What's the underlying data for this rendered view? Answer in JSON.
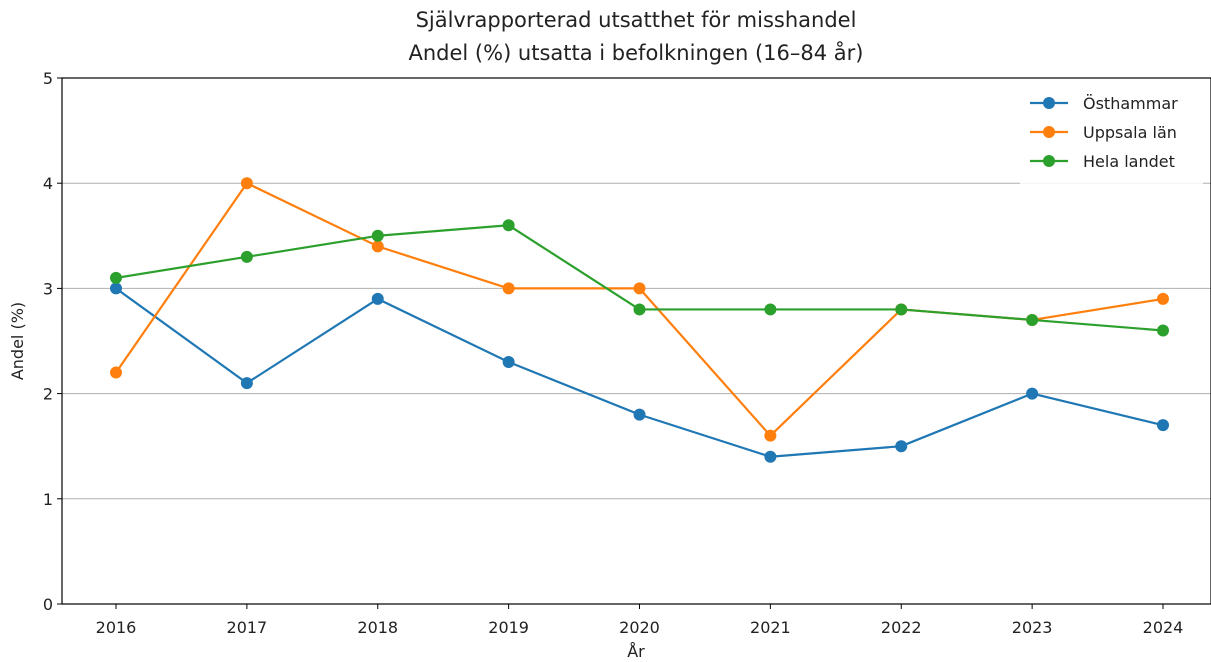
{
  "chart_data": {
    "type": "line",
    "title": "Självrapporterad utsatthet för misshandel",
    "subtitle": "Andel (%) utsatta i befolkningen (16–84 år)",
    "xlabel": "År",
    "ylabel": "Andel (%)",
    "categories": [
      "2016",
      "2017",
      "2018",
      "2019",
      "2020",
      "2021",
      "2022",
      "2023",
      "2024"
    ],
    "ylim": [
      0,
      5
    ],
    "yticks": [
      "0",
      "1",
      "2",
      "3",
      "4",
      "5"
    ],
    "grid": "horizontal",
    "legend_position": "top-right",
    "series": [
      {
        "name": "Östhammar",
        "color": "#1f77b4",
        "values": [
          3.0,
          2.1,
          2.9,
          2.3,
          1.8,
          1.4,
          1.5,
          2.0,
          1.7
        ]
      },
      {
        "name": "Uppsala län",
        "color": "#ff7f0e",
        "values": [
          2.2,
          4.0,
          3.4,
          3.0,
          3.0,
          1.6,
          2.8,
          2.7,
          2.9
        ]
      },
      {
        "name": "Hela landet",
        "color": "#2ca02c",
        "values": [
          3.1,
          3.3,
          3.5,
          3.6,
          2.8,
          2.8,
          2.8,
          2.7,
          2.6
        ]
      }
    ]
  }
}
